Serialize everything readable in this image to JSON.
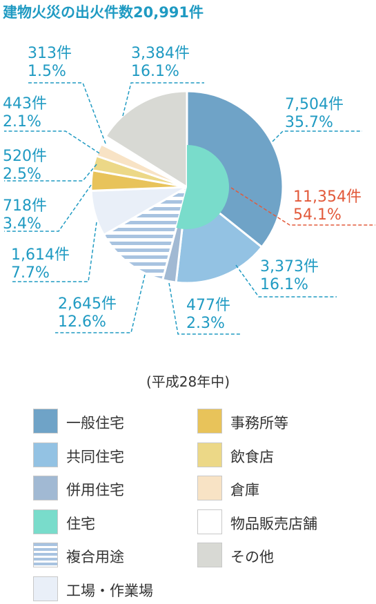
{
  "title": "建物火災の出火件数20,991件",
  "note": "(平成28年中)",
  "colors": {
    "label": "#1f9ac2",
    "highlight": "#e2593a"
  },
  "chart_data": {
    "type": "pie",
    "title": "建物火災の出火件数20,991件",
    "total": 20991,
    "slices": [
      {
        "name": "一般住宅",
        "count_label": "7,504件",
        "pct_label": "35.7%",
        "value": 7504,
        "color": "#6fa3c7",
        "pattern": "solid"
      },
      {
        "name": "共同住宅",
        "count_label": "3,373件",
        "pct_label": "16.1%",
        "value": 3373,
        "color": "#93c2e3",
        "pattern": "solid"
      },
      {
        "name": "併用住宅",
        "count_label": "477件",
        "pct_label": "2.3%",
        "value": 477,
        "color": "#a1b9d3",
        "pattern": "solid"
      },
      {
        "name": "複合用途",
        "count_label": "2,645件",
        "pct_label": "12.6%",
        "value": 2645,
        "color": "#a8c3e0",
        "pattern": "stripes"
      },
      {
        "name": "工場・作業場",
        "count_label": "1,614件",
        "pct_label": "7.7%",
        "value": 1614,
        "color": "#e9eff8",
        "pattern": "solid"
      },
      {
        "name": "事務所等",
        "count_label": "718件",
        "pct_label": "3.4%",
        "value": 718,
        "color": "#e8c35a",
        "pattern": "solid"
      },
      {
        "name": "飲食店",
        "count_label": "520件",
        "pct_label": "2.5%",
        "value": 520,
        "color": "#ecd887",
        "pattern": "solid"
      },
      {
        "name": "倉庫",
        "count_label": "443件",
        "pct_label": "2.1%",
        "value": 443,
        "color": "#f8e3c5",
        "pattern": "solid"
      },
      {
        "name": "物品販売店舗",
        "count_label": "313件",
        "pct_label": "1.5%",
        "value": 313,
        "color": "#ffffff",
        "pattern": "solid"
      },
      {
        "name": "その他",
        "count_label": "3,384件",
        "pct_label": "16.1%",
        "value": 3384,
        "color": "#d8d9d4",
        "pattern": "solid"
      }
    ],
    "inner": {
      "name": "住宅",
      "count_label": "11,354件",
      "pct_label": "54.1%",
      "value": 11354,
      "color": "#79dccb"
    }
  },
  "legend": [
    {
      "label": "一般住宅",
      "color": "#6fa3c7",
      "pattern": "solid"
    },
    {
      "label": "共同住宅",
      "color": "#93c2e3",
      "pattern": "solid"
    },
    {
      "label": "併用住宅",
      "color": "#a1b9d3",
      "pattern": "solid"
    },
    {
      "label": "住宅",
      "color": "#79dccb",
      "pattern": "solid"
    },
    {
      "label": "複合用途",
      "color": "#a8c3e0",
      "pattern": "stripes"
    },
    {
      "label": "工場・作業場",
      "color": "#e9eff8",
      "pattern": "solid"
    },
    {
      "label": "事務所等",
      "color": "#e8c35a",
      "pattern": "solid"
    },
    {
      "label": "飲食店",
      "color": "#ecd887",
      "pattern": "solid"
    },
    {
      "label": "倉庫",
      "color": "#f8e3c5",
      "pattern": "solid"
    },
    {
      "label": "物品販売店舗",
      "color": "#ffffff",
      "pattern": "solid"
    },
    {
      "label": "その他",
      "color": "#d8d9d4",
      "pattern": "solid"
    }
  ]
}
